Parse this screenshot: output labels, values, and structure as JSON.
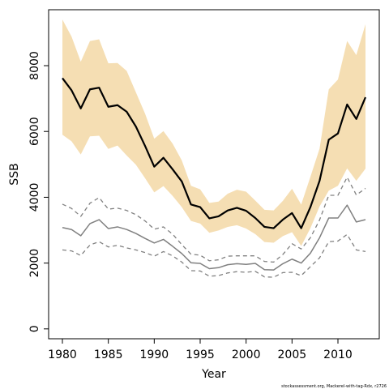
{
  "chart_data": {
    "type": "line",
    "xlabel": "Year",
    "ylabel": "SSB",
    "credit": "stockassessment.org, Mackerel-with-tag-Rdx, r2726",
    "xlim": [
      1978.5,
      2014.5
    ],
    "ylim": [
      -300,
      9700
    ],
    "x_ticks": [
      1980,
      1985,
      1990,
      1995,
      2000,
      2005,
      2010
    ],
    "y_ticks": [
      0,
      2000,
      4000,
      6000,
      8000
    ],
    "grid": false,
    "colors": {
      "band": "#f5deb3",
      "main_line": "#000000",
      "comparison_line": "#808080"
    },
    "x": [
      1980,
      1981,
      1982,
      1983,
      1984,
      1985,
      1986,
      1987,
      1988,
      1989,
      1990,
      1991,
      1992,
      1993,
      1994,
      1995,
      1996,
      1997,
      1998,
      1999,
      2000,
      2001,
      2002,
      2003,
      2004,
      2005,
      2006,
      2007,
      2008,
      2009,
      2010,
      2011,
      2012,
      2013
    ],
    "series": [
      {
        "role": "estimate",
        "style": "solid",
        "color": "#000000",
        "values": [
          7620,
          7250,
          6700,
          7280,
          7330,
          6750,
          6800,
          6600,
          6150,
          5560,
          4930,
          5200,
          4850,
          4480,
          3780,
          3700,
          3360,
          3420,
          3600,
          3680,
          3590,
          3370,
          3100,
          3060,
          3320,
          3520,
          3060,
          3700,
          4500,
          5750,
          5940,
          6820,
          6380,
          7040
        ]
      },
      {
        "role": "estimate-lower",
        "style": "band-lower",
        "values": [
          5900,
          5700,
          5300,
          5850,
          5870,
          5470,
          5570,
          5270,
          4990,
          4580,
          4150,
          4340,
          4040,
          3700,
          3280,
          3200,
          2920,
          2990,
          3100,
          3150,
          3050,
          2880,
          2640,
          2620,
          2820,
          2940,
          2520,
          3060,
          3720,
          4200,
          4350,
          4880,
          4500,
          4870
        ]
      },
      {
        "role": "estimate-upper",
        "style": "band-upper",
        "values": [
          9400,
          8880,
          8120,
          8750,
          8800,
          8070,
          8080,
          7840,
          7190,
          6540,
          5780,
          6010,
          5630,
          5120,
          4350,
          4240,
          3830,
          3870,
          4110,
          4230,
          4170,
          3900,
          3620,
          3600,
          3890,
          4260,
          3780,
          4620,
          5480,
          7280,
          7580,
          8750,
          8320,
          9260
        ]
      },
      {
        "role": "comparison",
        "style": "solid",
        "color": "#808080",
        "values": [
          3080,
          3020,
          2830,
          3200,
          3320,
          3050,
          3100,
          3020,
          2900,
          2750,
          2610,
          2720,
          2510,
          2290,
          2010,
          1990,
          1830,
          1860,
          1950,
          1980,
          1960,
          1990,
          1800,
          1790,
          1980,
          2120,
          2000,
          2300,
          2770,
          3370,
          3370,
          3760,
          3250,
          3320
        ]
      },
      {
        "role": "comparison-lower",
        "style": "dashed",
        "color": "#808080",
        "values": [
          2400,
          2370,
          2230,
          2550,
          2650,
          2490,
          2540,
          2460,
          2400,
          2320,
          2210,
          2350,
          2220,
          2030,
          1770,
          1760,
          1600,
          1620,
          1700,
          1740,
          1720,
          1750,
          1580,
          1570,
          1710,
          1720,
          1620,
          1890,
          2160,
          2650,
          2670,
          2870,
          2400,
          2350
        ]
      },
      {
        "role": "comparison-upper",
        "style": "dashed",
        "color": "#808080",
        "values": [
          3790,
          3660,
          3420,
          3820,
          3990,
          3640,
          3670,
          3600,
          3470,
          3280,
          3030,
          3100,
          2880,
          2560,
          2270,
          2240,
          2070,
          2100,
          2210,
          2220,
          2220,
          2220,
          2050,
          2030,
          2260,
          2590,
          2430,
          2770,
          3310,
          4060,
          4060,
          4610,
          4070,
          4270
        ]
      }
    ]
  }
}
